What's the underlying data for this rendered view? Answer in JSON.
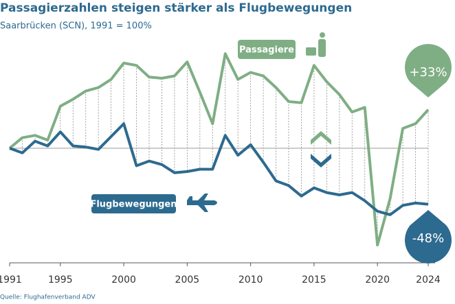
{
  "chart_data": {
    "type": "line",
    "title": "Passagierzahlen steigen stärker als Flugbewegungen",
    "subtitle": "Saarbrücken (SCN), 1991 = 100%",
    "source": "Quelle: Flughafenverband ADV",
    "x": [
      1991,
      1992,
      1993,
      1994,
      1995,
      1996,
      1997,
      1998,
      1999,
      2000,
      2001,
      2002,
      2003,
      2004,
      2005,
      2006,
      2007,
      2008,
      2009,
      2010,
      2011,
      2012,
      2013,
      2014,
      2015,
      2016,
      2017,
      2018,
      2019,
      2020,
      2021,
      2022,
      2023,
      2024
    ],
    "xlim": [
      1991,
      2024
    ],
    "xticks": [
      1991,
      1995,
      2000,
      2005,
      2010,
      2015,
      2020,
      2024
    ],
    "ylim": [
      0,
      200
    ],
    "reference_line": 100,
    "series": [
      {
        "name": "Passagiere",
        "color": "#7fae84",
        "values": [
          100,
          109,
          111,
          107,
          136,
          142,
          149,
          152,
          159,
          173,
          171,
          161,
          160,
          162,
          174,
          148,
          121,
          181,
          159,
          165,
          162,
          152,
          140,
          139,
          171,
          157,
          146,
          131,
          135,
          17,
          57,
          117,
          121,
          133
        ]
      },
      {
        "name": "Flugbewegungen",
        "color": "#2d6a8f",
        "values": [
          100,
          96,
          106,
          102,
          114,
          102,
          101,
          99,
          110,
          121,
          85,
          89,
          86,
          79,
          80,
          82,
          82,
          111,
          94,
          103,
          88,
          72,
          68,
          59,
          66,
          62,
          60,
          62,
          55,
          46,
          43,
          51,
          53,
          52
        ]
      }
    ],
    "annotations": [
      {
        "text": "+33%"
      },
      {
        "text": "-48%"
      }
    ]
  }
}
